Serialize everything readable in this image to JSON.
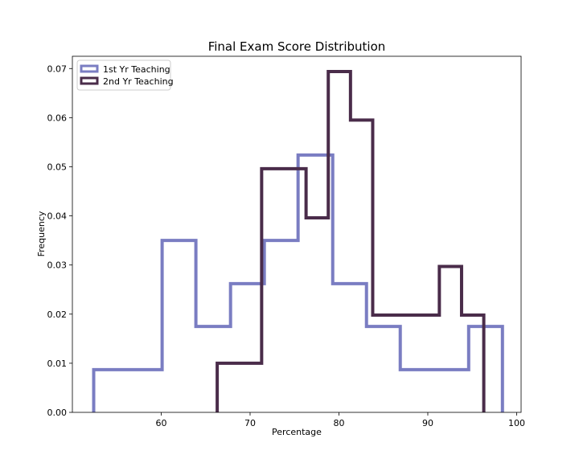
{
  "chart_data": {
    "type": "histogram-step",
    "title": "Final Exam Score Distribution",
    "xlabel": "Percentage",
    "ylabel": "Frequency",
    "xlim": [
      50,
      100.5
    ],
    "ylim": [
      0,
      0.0725
    ],
    "xticks": [
      60,
      70,
      80,
      90,
      100
    ],
    "yticks": [
      0.0,
      0.01,
      0.02,
      0.03,
      0.04,
      0.05,
      0.06,
      0.07
    ],
    "ytick_labels": [
      "0.00",
      "0.01",
      "0.02",
      "0.03",
      "0.04",
      "0.05",
      "0.06",
      "0.07"
    ],
    "legend_position": "upper-left",
    "series": [
      {
        "name": "1st Yr Teaching",
        "color": "#7a7dc2",
        "bin_edges": [
          52.4,
          56.2,
          60.1,
          63.9,
          67.8,
          71.6,
          75.4,
          79.3,
          83.1,
          86.9,
          90.8,
          94.6,
          98.4
        ],
        "values": [
          0.0087,
          0.0087,
          0.035,
          0.0175,
          0.0262,
          0.035,
          0.0524,
          0.0262,
          0.0175,
          0.0087,
          0.0087,
          0.0175
        ]
      },
      {
        "name": "2nd Yr Teaching",
        "color": "#4a2c4a",
        "bin_edges": [
          66.3,
          68.8,
          71.3,
          73.8,
          76.3,
          78.8,
          81.3,
          83.8,
          86.3,
          88.8,
          91.3,
          93.8,
          96.3
        ],
        "values": [
          0.01,
          0.01,
          0.0496,
          0.0496,
          0.0396,
          0.0694,
          0.0595,
          0.0198,
          0.0198,
          0.0198,
          0.0297,
          0.0198
        ]
      }
    ]
  }
}
